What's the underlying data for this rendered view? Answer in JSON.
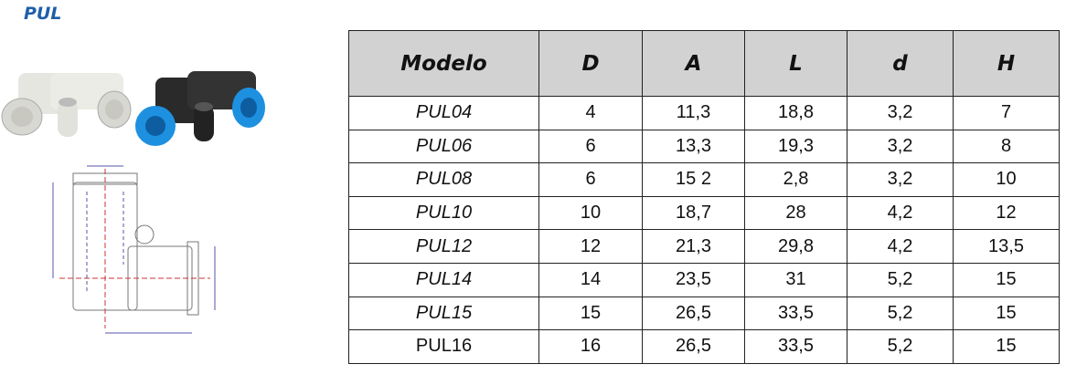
{
  "header": {
    "title": "PUL"
  },
  "table": {
    "columns": [
      "Modelo",
      "D",
      "A",
      "L",
      "d",
      "H"
    ],
    "rows": [
      [
        "PUL04",
        "4",
        "11,3",
        "18,8",
        "3,2",
        "7"
      ],
      [
        "PUL06",
        "6",
        "13,3",
        "19,3",
        "3,2",
        "8"
      ],
      [
        "PUL08",
        "6",
        "15 2",
        "2,8",
        "3,2",
        "10"
      ],
      [
        "PUL10",
        "10",
        "18,7",
        "28",
        "4,2",
        "12"
      ],
      [
        "PUL12",
        "12",
        "21,3",
        "29,8",
        "4,2",
        "13,5"
      ],
      [
        "PUL14",
        "14",
        "23,5",
        "31",
        "5,2",
        "15"
      ],
      [
        "PUL15",
        "15",
        "26,5",
        "33,5",
        "5,2",
        "15"
      ],
      [
        "PUL16",
        "16",
        "26,5",
        "33,5",
        "5,2",
        "15"
      ]
    ]
  }
}
